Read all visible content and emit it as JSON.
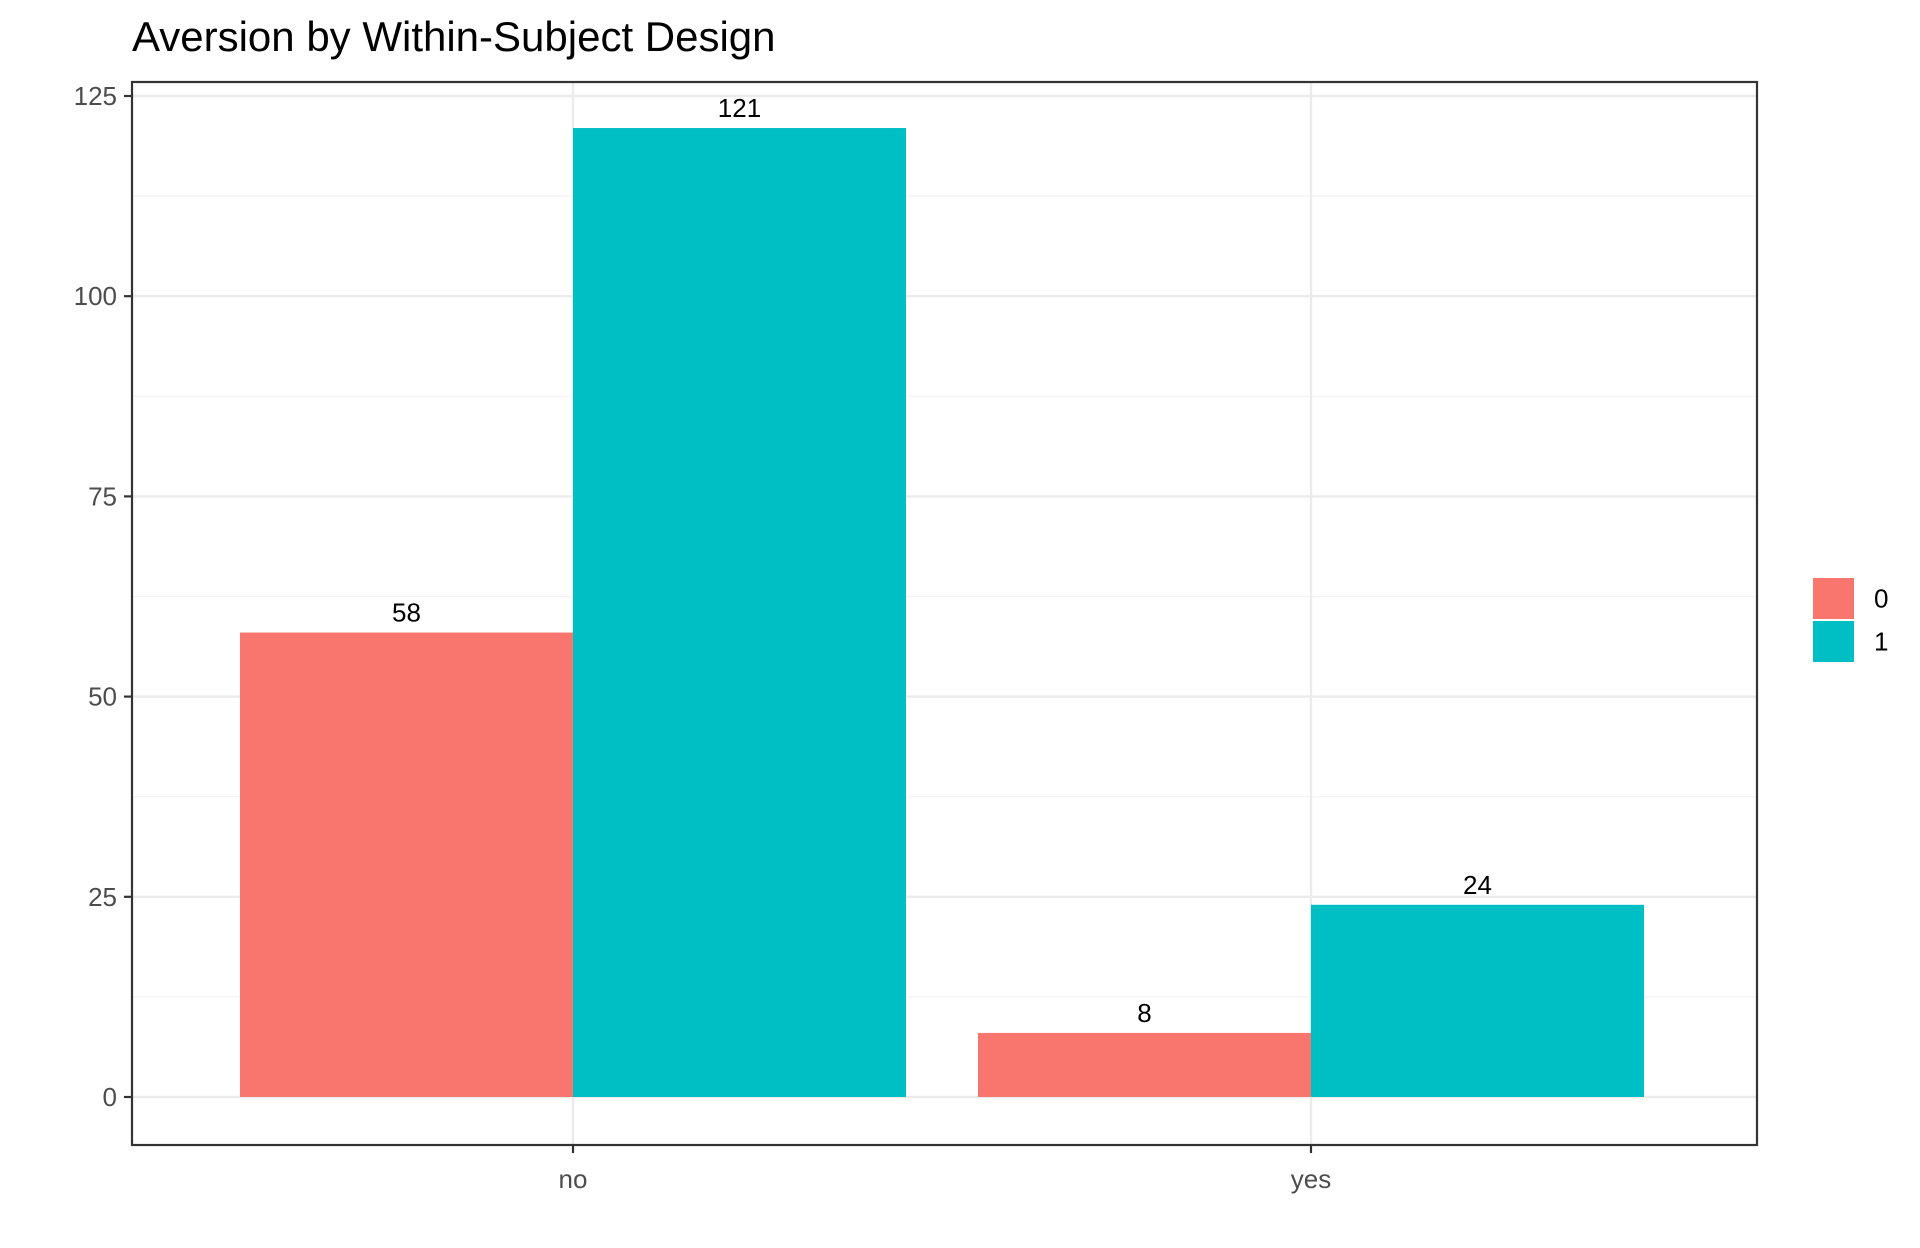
{
  "chart_data": {
    "type": "bar",
    "title": "Aversion by Within-Subject Design",
    "xlabel": "",
    "ylabel": "",
    "categories": [
      "no",
      "yes"
    ],
    "series": [
      {
        "name": "0",
        "values": [
          58,
          8
        ],
        "color": "#F8766D"
      },
      {
        "name": "1",
        "values": [
          121,
          24
        ],
        "color": "#00BFC4"
      }
    ],
    "ylim": [
      0,
      125
    ],
    "yticks": [
      0,
      25,
      50,
      75,
      100,
      125
    ],
    "grid": true,
    "legend_position": "right",
    "legend_title": ""
  }
}
